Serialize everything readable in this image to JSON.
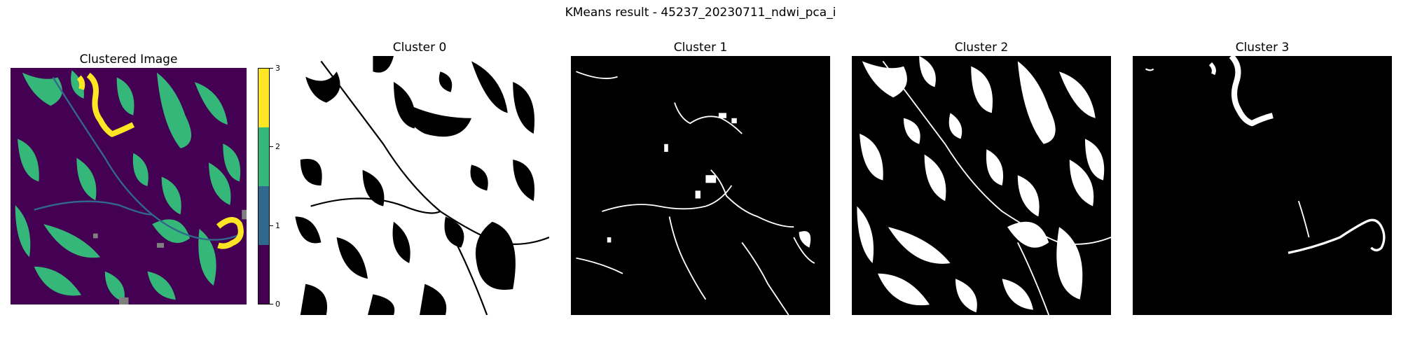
{
  "figure": {
    "suptitle": "KMeans result - 45237_20230711_ndwi_pca_i"
  },
  "panels": {
    "clustered": {
      "title": "Clustered Image"
    },
    "cluster0": {
      "title": "Cluster 0"
    },
    "cluster1": {
      "title": "Cluster 1"
    },
    "cluster2": {
      "title": "Cluster 2"
    },
    "cluster3": {
      "title": "Cluster 3"
    }
  },
  "colorbar": {
    "ticks": [
      "0",
      "1",
      "2",
      "3"
    ],
    "colors": [
      "#440154",
      "#31688e",
      "#35b779",
      "#fde725"
    ]
  },
  "colors": {
    "cluster0": "#440154",
    "cluster1": "#31688e",
    "cluster2": "#35b779",
    "cluster3": "#fde725",
    "masked": "#808080",
    "mask_on": "#ffffff",
    "mask_off": "#000000"
  },
  "chart_data": {
    "type": "heatmap",
    "title": "KMeans result - 45237_20230711_ndwi_pca_i",
    "n_clusters": 4,
    "subplots": [
      "Clustered Image",
      "Cluster 0",
      "Cluster 1",
      "Cluster 2",
      "Cluster 3"
    ],
    "colorbar_range": [
      0,
      3
    ],
    "colorbar_ticks": [
      0,
      1,
      2,
      3
    ]
  }
}
